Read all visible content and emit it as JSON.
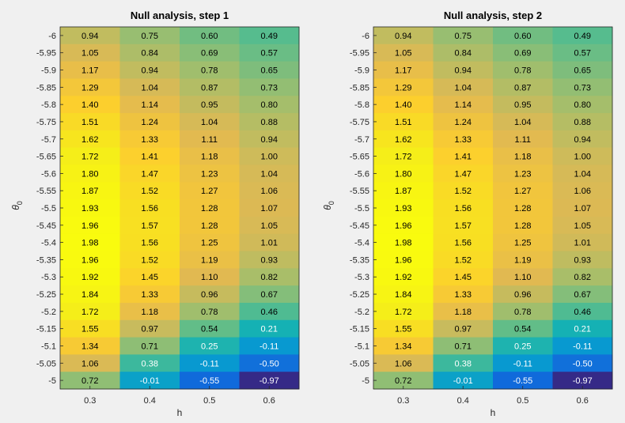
{
  "figure": {
    "background": "#f0f0f0"
  },
  "colormap": {
    "name": "parula",
    "low_color": "#352a87",
    "high_color": "#f9fb0e",
    "clim": [
      -0.97,
      1.98
    ]
  },
  "chart_data": [
    {
      "type": "heatmap",
      "title": "Null analysis, step 1",
      "xlabel": "h",
      "ylabel": "θ",
      "ylabel_subscript": "0",
      "x": [
        "0.3",
        "0.4",
        "0.5",
        "0.6"
      ],
      "y": [
        "-6",
        "-5.95",
        "-5.9",
        "-5.85",
        "-5.8",
        "-5.75",
        "-5.7",
        "-5.65",
        "-5.6",
        "-5.55",
        "-5.5",
        "-5.45",
        "-5.4",
        "-5.35",
        "-5.3",
        "-5.25",
        "-5.2",
        "-5.15",
        "-5.1",
        "-5.05",
        "-5"
      ],
      "values": [
        [
          0.94,
          0.75,
          0.6,
          0.49
        ],
        [
          1.05,
          0.84,
          0.69,
          0.57
        ],
        [
          1.17,
          0.94,
          0.78,
          0.65
        ],
        [
          1.29,
          1.04,
          0.87,
          0.73
        ],
        [
          1.4,
          1.14,
          0.95,
          0.8
        ],
        [
          1.51,
          1.24,
          1.04,
          0.88
        ],
        [
          1.62,
          1.33,
          1.11,
          0.94
        ],
        [
          1.72,
          1.41,
          1.18,
          1.0
        ],
        [
          1.8,
          1.47,
          1.23,
          1.04
        ],
        [
          1.87,
          1.52,
          1.27,
          1.06
        ],
        [
          1.93,
          1.56,
          1.28,
          1.07
        ],
        [
          1.96,
          1.57,
          1.28,
          1.05
        ],
        [
          1.98,
          1.56,
          1.25,
          1.01
        ],
        [
          1.96,
          1.52,
          1.19,
          0.93
        ],
        [
          1.92,
          1.45,
          1.1,
          0.82
        ],
        [
          1.84,
          1.33,
          0.96,
          0.67
        ],
        [
          1.72,
          1.18,
          0.78,
          0.46
        ],
        [
          1.55,
          0.97,
          0.54,
          0.21
        ],
        [
          1.34,
          0.71,
          0.25,
          -0.11
        ],
        [
          1.06,
          0.38,
          -0.11,
          -0.5
        ],
        [
          0.72,
          -0.01,
          -0.55,
          -0.97
        ]
      ],
      "grid": false,
      "colorbar": false
    },
    {
      "type": "heatmap",
      "title": "Null analysis, step 2",
      "xlabel": "h",
      "ylabel": "θ",
      "ylabel_subscript": "0",
      "x": [
        "0.3",
        "0.4",
        "0.5",
        "0.6"
      ],
      "y": [
        "-6",
        "-5.95",
        "-5.9",
        "-5.85",
        "-5.8",
        "-5.75",
        "-5.7",
        "-5.65",
        "-5.6",
        "-5.55",
        "-5.5",
        "-5.45",
        "-5.4",
        "-5.35",
        "-5.3",
        "-5.25",
        "-5.2",
        "-5.15",
        "-5.1",
        "-5.05",
        "-5"
      ],
      "values": [
        [
          0.94,
          0.75,
          0.6,
          0.49
        ],
        [
          1.05,
          0.84,
          0.69,
          0.57
        ],
        [
          1.17,
          0.94,
          0.78,
          0.65
        ],
        [
          1.29,
          1.04,
          0.87,
          0.73
        ],
        [
          1.4,
          1.14,
          0.95,
          0.8
        ],
        [
          1.51,
          1.24,
          1.04,
          0.88
        ],
        [
          1.62,
          1.33,
          1.11,
          0.94
        ],
        [
          1.72,
          1.41,
          1.18,
          1.0
        ],
        [
          1.8,
          1.47,
          1.23,
          1.04
        ],
        [
          1.87,
          1.52,
          1.27,
          1.06
        ],
        [
          1.93,
          1.56,
          1.28,
          1.07
        ],
        [
          1.96,
          1.57,
          1.28,
          1.05
        ],
        [
          1.98,
          1.56,
          1.25,
          1.01
        ],
        [
          1.96,
          1.52,
          1.19,
          0.93
        ],
        [
          1.92,
          1.45,
          1.1,
          0.82
        ],
        [
          1.84,
          1.33,
          0.96,
          0.67
        ],
        [
          1.72,
          1.18,
          0.78,
          0.46
        ],
        [
          1.55,
          0.97,
          0.54,
          0.21
        ],
        [
          1.34,
          0.71,
          0.25,
          -0.11
        ],
        [
          1.06,
          0.38,
          -0.11,
          -0.5
        ],
        [
          0.72,
          -0.01,
          -0.55,
          -0.97
        ]
      ],
      "grid": false,
      "colorbar": false
    }
  ]
}
